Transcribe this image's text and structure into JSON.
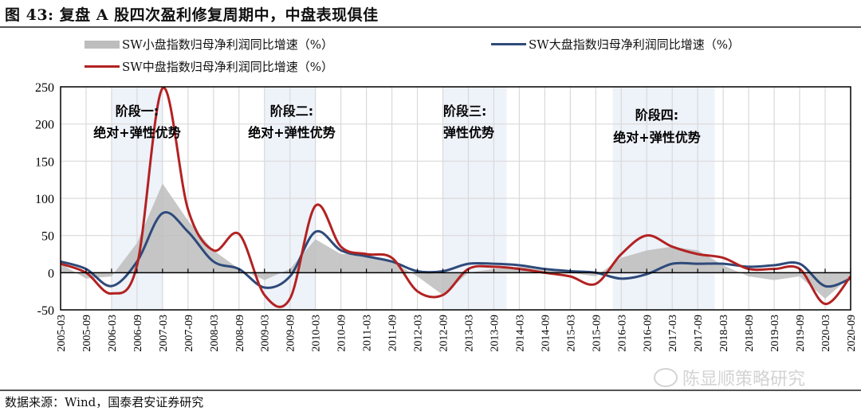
{
  "header": {
    "title": "图 43:  复盘 A 股四次盈利修复周期中，中盘表现俱佳"
  },
  "legend": [
    {
      "label": "SW小盘指数归母净利润同比增速（%）",
      "type": "area",
      "color": "#bdbdbd"
    },
    {
      "label": "SW大盘指数归母净利润同比增速（%）",
      "type": "line",
      "color": "#2e4a7a"
    },
    {
      "label": "SW中盘指数归母净利润同比增速（%）",
      "type": "line",
      "color": "#b22222"
    }
  ],
  "phases": [
    {
      "title": "阶段一:",
      "subtitle": "绝对+弹性优势",
      "start": "2006-03",
      "end": "2007-03"
    },
    {
      "title": "阶段二:",
      "subtitle": "绝对+弹性优势",
      "start": "2009-03",
      "end": "2010-03"
    },
    {
      "title": "阶段三:",
      "subtitle": "弹性优势",
      "start": "2012-09",
      "end": "2013-12"
    },
    {
      "title": "阶段四:",
      "subtitle": "绝对+弹性优势",
      "start": "2016-01",
      "end": "2018-01"
    }
  ],
  "source": "数据来源：Wind，国泰君安证券研究",
  "watermark": "陈显顺策略研究",
  "colors": {
    "small_cap_area": "#bdbdbd",
    "large_cap_line": "#2e4a7a",
    "mid_cap_line": "#b22222",
    "phase_band": "#eef2f9"
  },
  "chart_data": {
    "type": "line",
    "title": "复盘 A 股四次盈利修复周期中，中盘表现俱佳",
    "xlabel": "",
    "ylabel": "",
    "ylim": [
      -50,
      250
    ],
    "yticks": [
      -50,
      0,
      50,
      100,
      150,
      200,
      250
    ],
    "grid": true,
    "legend_position": "top",
    "categories": [
      "2005-03",
      "2005-09",
      "2006-03",
      "2006-09",
      "2007-03",
      "2007-09",
      "2008-03",
      "2008-09",
      "2009-03",
      "2009-09",
      "2010-03",
      "2010-09",
      "2011-03",
      "2011-09",
      "2012-03",
      "2012-09",
      "2013-03",
      "2013-09",
      "2014-03",
      "2014-09",
      "2015-03",
      "2015-09",
      "2016-03",
      "2016-09",
      "2017-03",
      "2017-09",
      "2018-03",
      "2018-09",
      "2019-03",
      "2019-09",
      "2020-03",
      "2020-09"
    ],
    "series": [
      {
        "name": "SW小盘指数归母净利润同比增速（%）",
        "type": "area",
        "values": [
          12,
          -8,
          -5,
          40,
          120,
          70,
          30,
          5,
          -10,
          5,
          45,
          25,
          25,
          15,
          -5,
          -30,
          0,
          5,
          8,
          5,
          0,
          -5,
          20,
          30,
          35,
          30,
          10,
          -5,
          -10,
          -5,
          -35,
          -5
        ]
      },
      {
        "name": "SW大盘指数归母净利润同比增速（%）",
        "type": "line",
        "values": [
          15,
          5,
          -18,
          15,
          80,
          55,
          15,
          5,
          -20,
          -5,
          55,
          30,
          22,
          15,
          2,
          2,
          12,
          12,
          10,
          5,
          2,
          0,
          -8,
          -2,
          12,
          12,
          12,
          8,
          10,
          12,
          -18,
          -8
        ]
      },
      {
        "name": "SW中盘指数归母净利润同比增速（%）",
        "type": "line",
        "values": [
          12,
          0,
          -28,
          10,
          248,
          85,
          30,
          52,
          -30,
          -35,
          90,
          35,
          25,
          20,
          -25,
          -30,
          5,
          8,
          5,
          0,
          -5,
          -15,
          25,
          50,
          35,
          25,
          20,
          5,
          5,
          5,
          -42,
          -5
        ]
      }
    ],
    "annotations": [
      "阶段一: 绝对+弹性优势",
      "阶段二: 绝对+弹性优势",
      "阶段三: 弹性优势",
      "阶段四: 绝对+弹性优势"
    ]
  }
}
